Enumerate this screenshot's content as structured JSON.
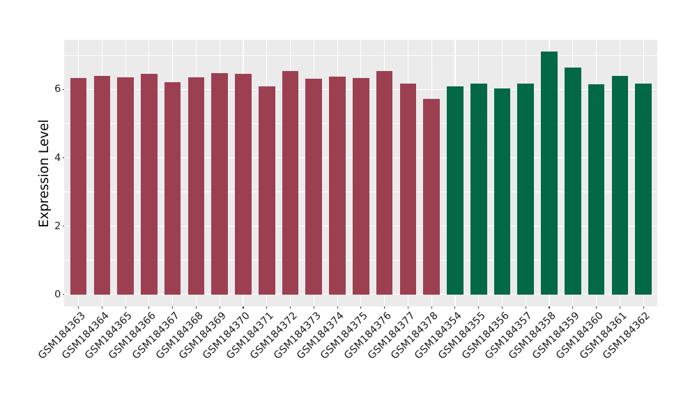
{
  "chart_data": {
    "type": "bar",
    "title": "",
    "xlabel": "",
    "ylabel": "Expression Level",
    "categories": [
      "GSM184363",
      "GSM184364",
      "GSM184365",
      "GSM184366",
      "GSM184367",
      "GSM184368",
      "GSM184369",
      "GSM184370",
      "GSM184371",
      "GSM184372",
      "GSM184373",
      "GSM184374",
      "GSM184375",
      "GSM184376",
      "GSM184377",
      "GSM184378",
      "GSM184354",
      "GSM184355",
      "GSM184356",
      "GSM184357",
      "GSM184358",
      "GSM184359",
      "GSM184360",
      "GSM184361",
      "GSM184362"
    ],
    "values": [
      6.33,
      6.39,
      6.35,
      6.46,
      6.21,
      6.35,
      6.48,
      6.45,
      6.09,
      6.53,
      6.31,
      6.38,
      6.33,
      6.54,
      6.16,
      5.73,
      6.09,
      6.18,
      6.03,
      6.16,
      7.1,
      6.64,
      6.14,
      6.4,
      6.18
    ],
    "groups": [
      "A",
      "A",
      "A",
      "A",
      "A",
      "A",
      "A",
      "A",
      "A",
      "A",
      "A",
      "A",
      "A",
      "A",
      "A",
      "A",
      "B",
      "B",
      "B",
      "B",
      "B",
      "B",
      "B",
      "B",
      "B"
    ],
    "group_colors": {
      "A": "#9C4051",
      "B": "#026845"
    },
    "yticks": [
      0,
      2,
      4,
      6
    ],
    "yminor": [
      1,
      3,
      5,
      7
    ],
    "ylim": [
      -0.355,
      7.46
    ],
    "bar_width_fraction": 0.7,
    "grid": "on",
    "legend_position": "none",
    "panel_background": "#EBEBEB",
    "grid_color": "#FFFFFF",
    "tick_color": "#333333",
    "axis_text_color": "#1A1A1A",
    "axis_title_color": "#000000"
  }
}
